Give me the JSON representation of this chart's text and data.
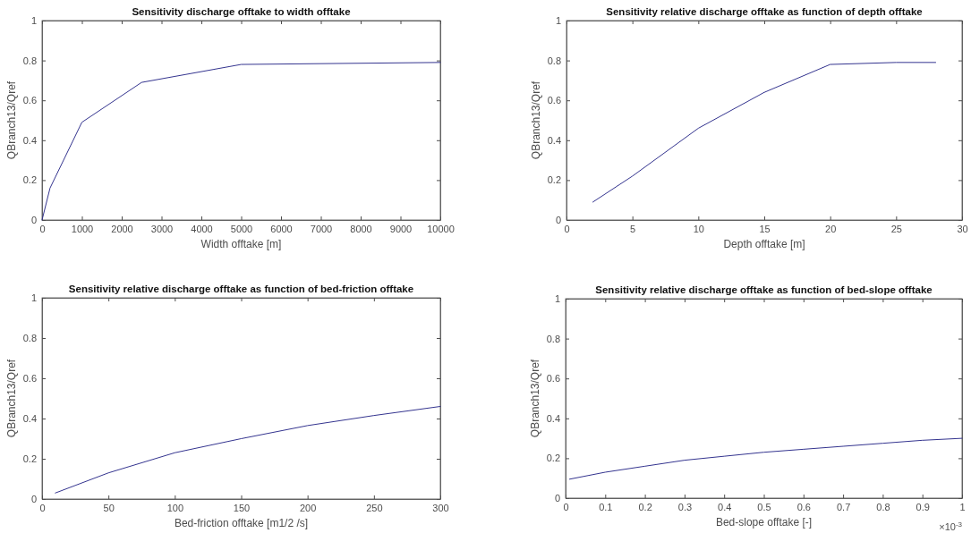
{
  "chart_data": [
    {
      "type": "line",
      "title": "Sensitivity discharge offtake to width offtake",
      "xlabel": "Width offtake [m]",
      "ylabel": "QBranch13/Qref",
      "x": [
        0,
        200,
        1000,
        2500,
        5000,
        10000
      ],
      "series": [
        {
          "color": "#34348f",
          "values": [
            0,
            0.16,
            0.49,
            0.69,
            0.78,
            0.79
          ]
        }
      ],
      "xlim": [
        0,
        10000
      ],
      "ylim": [
        0,
        1
      ],
      "xticks": [
        0,
        1000,
        2000,
        3000,
        4000,
        5000,
        6000,
        7000,
        8000,
        9000,
        10000
      ],
      "yticks": [
        0,
        0.2,
        0.4,
        0.6,
        0.8,
        1
      ],
      "grid": false,
      "line_style": "solid"
    },
    {
      "type": "line",
      "title": "Sensitivity relative discharge offtake as function of depth offtake",
      "xlabel": "Depth offtake [m]",
      "ylabel": "QBranch13/Qref",
      "x": [
        2,
        5,
        10,
        15,
        20,
        25,
        28
      ],
      "series": [
        {
          "color": "#34348f",
          "values": [
            0.09,
            0.22,
            0.46,
            0.64,
            0.78,
            0.79,
            0.79
          ]
        }
      ],
      "xlim": [
        0,
        30
      ],
      "ylim": [
        0,
        1
      ],
      "xticks": [
        0,
        5,
        10,
        15,
        20,
        25,
        30
      ],
      "yticks": [
        0,
        0.2,
        0.4,
        0.6,
        0.8,
        1
      ],
      "grid": false,
      "line_style": "solid"
    },
    {
      "type": "line",
      "title": "Sensitivity relative discharge offtake as function of bed-friction offtake",
      "xlabel": "Bed-friction offtake [m1/2 /s]",
      "ylabel": "QBranch13/Qref",
      "x": [
        10,
        50,
        100,
        150,
        200,
        250,
        300
      ],
      "series": [
        {
          "color": "#34348f",
          "values": [
            0.03,
            0.13,
            0.23,
            0.3,
            0.365,
            0.415,
            0.46
          ]
        }
      ],
      "xlim": [
        0,
        300
      ],
      "ylim": [
        0,
        1
      ],
      "xticks": [
        0,
        50,
        100,
        150,
        200,
        250,
        300
      ],
      "yticks": [
        0,
        0.2,
        0.4,
        0.6,
        0.8,
        1
      ],
      "grid": false,
      "line_style": "solid"
    },
    {
      "type": "line",
      "title": "Sensitivity relative discharge offtake as function of bed-slope offtake",
      "xlabel": "Bed-slope offtake [-]",
      "ylabel": "QBranch13/Qref",
      "annotations": [
        "×10$^{-3}$"
      ],
      "x": [
        0.01,
        0.1,
        0.2,
        0.3,
        0.4,
        0.5,
        0.6,
        0.7,
        0.8,
        0.9,
        1
      ],
      "series": [
        {
          "color": "#34348f",
          "values": [
            0.095,
            0.13,
            0.16,
            0.19,
            0.21,
            0.23,
            0.245,
            0.26,
            0.275,
            0.29,
            0.3
          ]
        }
      ],
      "xlim": [
        0,
        1
      ],
      "ylim": [
        0,
        1
      ],
      "xticks": [
        0,
        0.1,
        0.2,
        0.3,
        0.4,
        0.5,
        0.6,
        0.7,
        0.8,
        0.9,
        1
      ],
      "yticks": [
        0,
        0.2,
        0.4,
        0.6,
        0.8,
        1
      ],
      "grid": false,
      "line_style": "solid"
    }
  ]
}
